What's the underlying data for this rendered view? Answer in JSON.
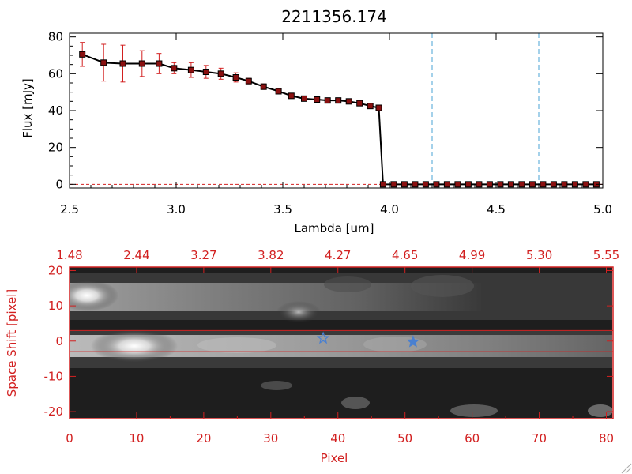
{
  "chart_data": [
    {
      "type": "line",
      "title": "2211356.174",
      "xlabel": "Lambda [um]",
      "ylabel": "Flux [mJy]",
      "xlim": [
        2.5,
        5.0
      ],
      "ylim": [
        -2,
        82
      ],
      "xticks": [
        "2.5",
        "3.0",
        "3.5",
        "4.0",
        "4.5",
        "5.0"
      ],
      "yticks": [
        "0",
        "20",
        "40",
        "60",
        "80"
      ],
      "vlines": [
        4.2,
        4.7
      ],
      "series": [
        {
          "x": [
            2.56,
            2.66,
            2.75,
            2.84,
            2.92,
            2.99,
            3.07,
            3.14,
            3.21,
            3.28,
            3.34,
            3.41,
            3.48,
            3.54,
            3.6,
            3.66,
            3.71,
            3.76,
            3.81,
            3.86,
            3.91,
            3.95,
            3.97,
            4.02,
            4.07,
            4.12,
            4.17,
            4.22,
            4.27,
            4.32,
            4.37,
            4.42,
            4.47,
            4.52,
            4.57,
            4.62,
            4.67,
            4.72,
            4.77,
            4.82,
            4.87,
            4.92,
            4.97
          ],
          "y": [
            70.5,
            66,
            65.5,
            65.5,
            65.5,
            63,
            62,
            61,
            60,
            58,
            56,
            53,
            50.5,
            48,
            46.5,
            46,
            45.5,
            45.5,
            45,
            44,
            42.5,
            41.5,
            0,
            0,
            0,
            0,
            0,
            0,
            0,
            0,
            0,
            0,
            0,
            0,
            0,
            0,
            0,
            0,
            0,
            0,
            0,
            0,
            0
          ],
          "yerr": [
            6.5,
            10,
            10,
            7,
            5.5,
            3,
            4,
            3.5,
            3,
            2.5,
            1.5,
            1.5,
            0,
            0,
            0,
            0,
            0,
            0,
            0,
            0,
            0,
            0,
            0,
            0,
            0,
            0,
            0,
            0,
            0,
            0,
            0,
            0,
            0,
            0,
            0,
            0,
            0,
            0,
            0,
            0,
            0,
            0,
            0
          ]
        }
      ],
      "colors": {
        "line": "#000000",
        "marker": "#8a1010",
        "errorbar": "#d22020",
        "vline": "#4aa3d6"
      }
    },
    {
      "type": "heatmap",
      "xlabel": "Pixel",
      "ylabel": "Space Shift [pixel]",
      "xlim": [
        0,
        81
      ],
      "ylim": [
        -22,
        21
      ],
      "xticks": [
        "0",
        "10",
        "20",
        "30",
        "40",
        "50",
        "60",
        "70",
        "80"
      ],
      "yticks": [
        "-20",
        "-10",
        "0",
        "10",
        "20"
      ],
      "top_tick_labels": [
        "1.48",
        "2.44",
        "3.27",
        "3.82",
        "4.27",
        "4.65",
        "4.99",
        "5.30",
        "5.55"
      ],
      "aperture": [
        -3,
        3
      ],
      "markers": [
        {
          "x": 37.8,
          "y": 0.8,
          "shape": "star-open"
        },
        {
          "x": 51.2,
          "y": -0.2,
          "shape": "star-filled"
        }
      ],
      "colors": {
        "axes": "#d22020",
        "marker": "#4a80d0"
      }
    }
  ]
}
